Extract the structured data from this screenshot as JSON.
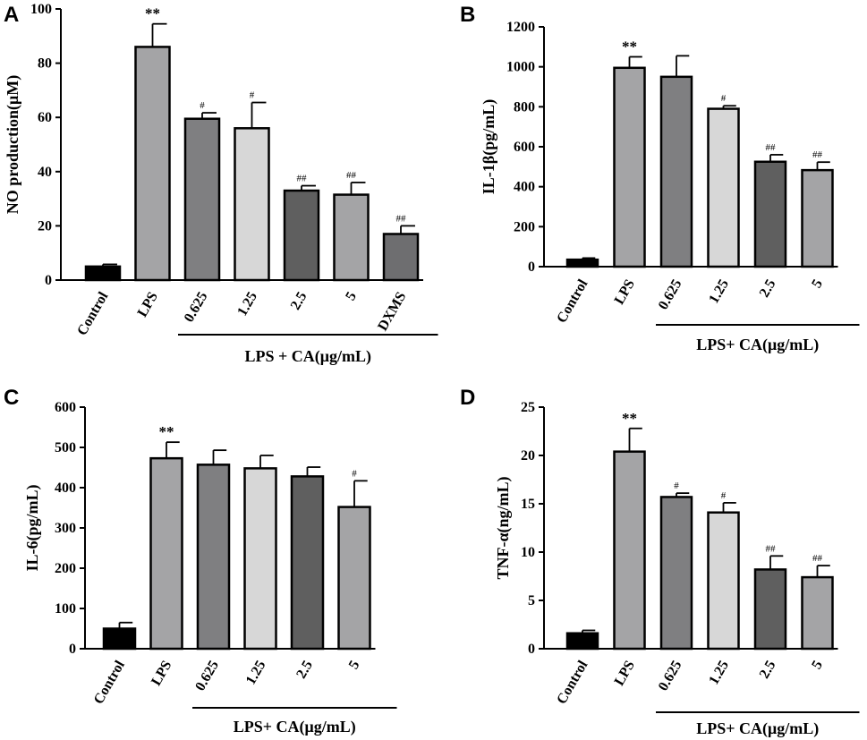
{
  "chart_data": [
    {
      "panel": "A",
      "type": "bar",
      "ylabel": "NO production(μM)",
      "ylim": [
        0,
        100
      ],
      "yticks": [
        0,
        20,
        40,
        60,
        80,
        100
      ],
      "categories": [
        "Control",
        "LPS",
        "0.625",
        "1.25",
        "2.5",
        "5",
        "DXMS"
      ],
      "values": [
        5,
        86,
        59.5,
        56,
        33,
        31.5,
        17
      ],
      "errors": [
        0.8,
        8.5,
        2.2,
        9.5,
        1.8,
        4.5,
        3
      ],
      "significance": [
        "",
        "**",
        "#",
        "#",
        "##",
        "##",
        "##"
      ],
      "colors": [
        "#000000",
        "#a4a4a6",
        "#7f7f81",
        "#d7d7d7",
        "#5f5f5f",
        "#a4a4a6",
        "#6e6e70"
      ],
      "group_label": "LPS + CA(μg/mL)",
      "group_span": [
        2,
        5
      ]
    },
    {
      "panel": "B",
      "type": "bar",
      "ylabel": "IL-1β(pg/mL)",
      "ylim": [
        0,
        1200
      ],
      "yticks": [
        0,
        200,
        400,
        600,
        800,
        1000,
        1200
      ],
      "categories": [
        "Control",
        "LPS",
        "0.625",
        "1.25",
        "2.5",
        "5"
      ],
      "values": [
        35,
        995,
        950,
        790,
        525,
        483
      ],
      "errors": [
        8,
        55,
        105,
        15,
        35,
        40
      ],
      "significance": [
        "",
        "**",
        "",
        "#",
        "##",
        "##"
      ],
      "colors": [
        "#000000",
        "#a4a4a6",
        "#7f7f81",
        "#d7d7d7",
        "#5f5f5f",
        "#a4a4a6"
      ],
      "group_label": "LPS+ CA(μg/mL)",
      "group_span": [
        2,
        5
      ]
    },
    {
      "panel": "C",
      "type": "bar",
      "ylabel": "IL-6(pg/mL)",
      "ylim": [
        0,
        600
      ],
      "yticks": [
        0,
        100,
        200,
        300,
        400,
        500,
        600
      ],
      "categories": [
        "Control",
        "LPS",
        "0.625",
        "1.25",
        "2.5",
        "5"
      ],
      "values": [
        50,
        473,
        457,
        448,
        428,
        352
      ],
      "errors": [
        15,
        40,
        36,
        32,
        23,
        65
      ],
      "significance": [
        "",
        "**",
        "",
        "",
        "",
        "#"
      ],
      "colors": [
        "#000000",
        "#a4a4a6",
        "#7f7f81",
        "#d7d7d7",
        "#5f5f5f",
        "#a4a4a6"
      ],
      "group_label": "LPS+ CA(μg/mL)",
      "group_span": [
        2,
        5
      ]
    },
    {
      "panel": "D",
      "type": "bar",
      "ylabel": "TNF-α(ng/mL)",
      "ylim": [
        0,
        25
      ],
      "yticks": [
        0,
        5,
        10,
        15,
        20,
        25
      ],
      "categories": [
        "Control",
        "LPS",
        "0.625",
        "1.25",
        "2.5",
        "5"
      ],
      "values": [
        1.6,
        20.4,
        15.7,
        14.1,
        8.2,
        7.4
      ],
      "errors": [
        0.3,
        2.4,
        0.4,
        1.0,
        1.4,
        1.2
      ],
      "significance": [
        "",
        "**",
        "#",
        "#",
        "##",
        "##"
      ],
      "colors": [
        "#000000",
        "#a4a4a6",
        "#7f7f81",
        "#d7d7d7",
        "#5f5f5f",
        "#a4a4a6"
      ],
      "group_label": "LPS+ CA(μg/mL)",
      "group_span": [
        2,
        5
      ]
    }
  ]
}
